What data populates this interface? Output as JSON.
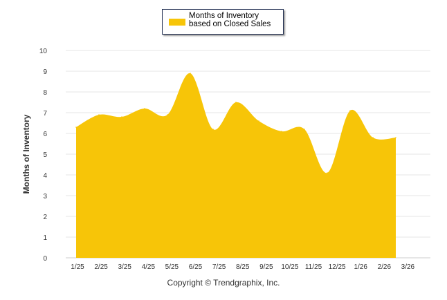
{
  "chart_data": {
    "type": "area",
    "title": "",
    "legend": {
      "entries": [
        "Months of Inventory based on Closed Sales"
      ],
      "placement": "top-center"
    },
    "categories": [
      "1/25",
      "2/25",
      "3/25",
      "4/25",
      "5/25",
      "6/25",
      "7/25",
      "8/25",
      "9/25",
      "10/25",
      "11/25",
      "12/25",
      "1/26",
      "2/26",
      "3/26"
    ],
    "series": [
      {
        "name": "Months of Inventory based on Closed Sales",
        "color": "#F7C508",
        "values": [
          6.3,
          6.9,
          6.8,
          7.2,
          6.9,
          8.9,
          6.2,
          7.5,
          6.6,
          6.1,
          6.2,
          4.1,
          7.1,
          5.8,
          5.8
        ]
      }
    ],
    "xlabel": "",
    "ylabel": "Months of Inventory",
    "ylim": [
      0,
      10
    ],
    "yticks": [
      "0",
      "1",
      "2",
      "3",
      "4",
      "5",
      "6",
      "7",
      "8",
      "9",
      "10"
    ],
    "grid": true
  },
  "footer": {
    "copyright": "Copyright © Trendgraphix, Inc."
  }
}
